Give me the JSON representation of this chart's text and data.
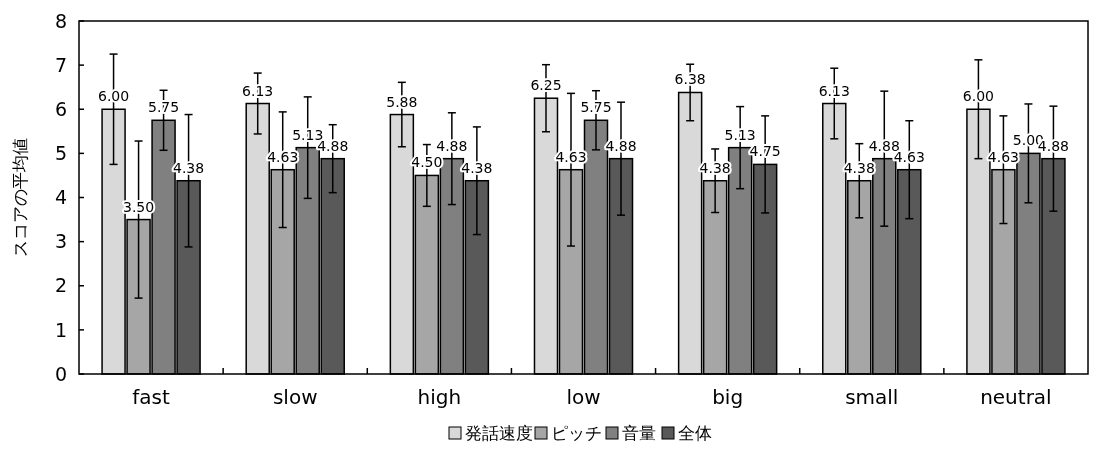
{
  "chart_data": {
    "type": "bar",
    "ylabel": "スコアの平均値",
    "categories": [
      "fast",
      "slow",
      "high",
      "low",
      "big",
      "small",
      "neutral"
    ],
    "ylim": [
      0,
      8
    ],
    "yticks": [
      0,
      1,
      2,
      3,
      4,
      5,
      6,
      7,
      8
    ],
    "grid": false,
    "legend": "bottom",
    "series": [
      {
        "name": "発話速度",
        "color": "#d9d9d9",
        "values": [
          6.0,
          6.13,
          5.88,
          6.25,
          6.38,
          6.13,
          6.0
        ],
        "value_labels": [
          "6.00",
          "6.13",
          "5.88",
          "6.25",
          "6.38",
          "6.13",
          "6.00"
        ],
        "errors": [
          1.25,
          0.69,
          0.73,
          0.76,
          0.64,
          0.8,
          1.12
        ]
      },
      {
        "name": "ピッチ",
        "color": "#a6a6a6",
        "values": [
          3.5,
          4.63,
          4.5,
          4.63,
          4.38,
          4.38,
          4.63
        ],
        "value_labels": [
          "3.50",
          "4.63",
          "4.50",
          "4.63",
          "4.38",
          "4.38",
          "4.63"
        ],
        "errors": [
          1.78,
          1.31,
          0.7,
          1.73,
          0.72,
          0.84,
          1.22
        ]
      },
      {
        "name": "音量",
        "color": "#808080",
        "values": [
          5.75,
          5.13,
          4.88,
          5.75,
          5.13,
          4.88,
          5.0
        ],
        "value_labels": [
          "5.75",
          "5.13",
          "4.88",
          "5.75",
          "5.13",
          "4.88",
          "5.00"
        ],
        "errors": [
          0.68,
          1.15,
          1.04,
          0.67,
          0.93,
          1.53,
          1.12
        ]
      },
      {
        "name": "全体",
        "color": "#595959",
        "values": [
          4.38,
          4.88,
          4.38,
          4.88,
          4.75,
          4.63,
          4.88
        ],
        "value_labels": [
          "4.38",
          "4.88",
          "4.38",
          "4.88",
          "4.75",
          "4.63",
          "4.88"
        ],
        "errors": [
          1.5,
          0.77,
          1.22,
          1.28,
          1.1,
          1.11,
          1.19
        ]
      }
    ]
  }
}
